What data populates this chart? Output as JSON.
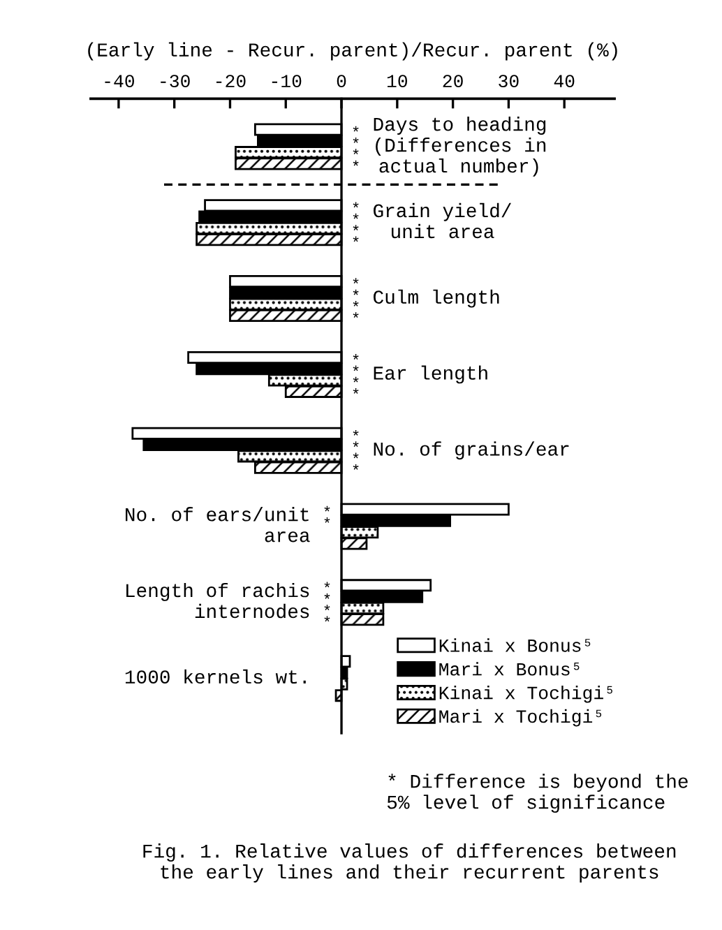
{
  "chart_data": {
    "type": "bar",
    "orientation": "horizontal",
    "xlabel": "(Early line - Recur. parent)/Recur. parent (%)",
    "categories": [
      "Days to heading\n(Differences in\nactual number)",
      "Grain yield/\nunit area",
      "Culm length",
      "Ear length",
      "No. of grains/ear",
      "No. of ears/unit\narea",
      "Length of rachis\ninternodes",
      "1000 kernels wt."
    ],
    "xlim": [
      -45,
      49
    ],
    "xticks": [
      -40,
      -30,
      -20,
      -10,
      0,
      10,
      20,
      30,
      40
    ],
    "series": [
      {
        "name": "Kinai x Bonus⁵",
        "color": "#ffffff",
        "values": [
          -15.5,
          -24.5,
          -20,
          -27.5,
          -37.5,
          30,
          16,
          1.5
        ],
        "value_labels": [
          "*",
          "*",
          "*",
          "*",
          "*",
          "*",
          "*",
          null
        ]
      },
      {
        "name": "Mari x Bonus⁵",
        "color": "#000000",
        "values": [
          -15,
          -25.5,
          -20,
          -26,
          -35.5,
          19.5,
          14.5,
          1
        ],
        "value_labels": [
          "*",
          "*",
          "*",
          "*",
          "*",
          "*",
          "*",
          null
        ]
      },
      {
        "name": "Kinai x Tochigi⁵",
        "color": "#000000",
        "values": [
          -19,
          -26,
          -20,
          -13,
          -18.5,
          6.5,
          7.5,
          1
        ],
        "value_labels": [
          "*",
          "*",
          "*",
          "*",
          "*",
          null,
          "*",
          null
        ]
      },
      {
        "name": "Mari x Tochigi⁵",
        "color": "#000000",
        "values": [
          -19,
          -26,
          -20,
          -10,
          -15.5,
          4.5,
          7.5,
          -1
        ],
        "value_labels": [
          "*",
          "*",
          "*",
          "*",
          "*",
          null,
          "*",
          null
        ]
      }
    ],
    "legend": "bottom right",
    "annotations": [
      "* Difference is beyond the\n5% level of significance",
      "Fig. 1. Relative values of differences between\nthe early lines and their recurrent parents"
    ]
  }
}
